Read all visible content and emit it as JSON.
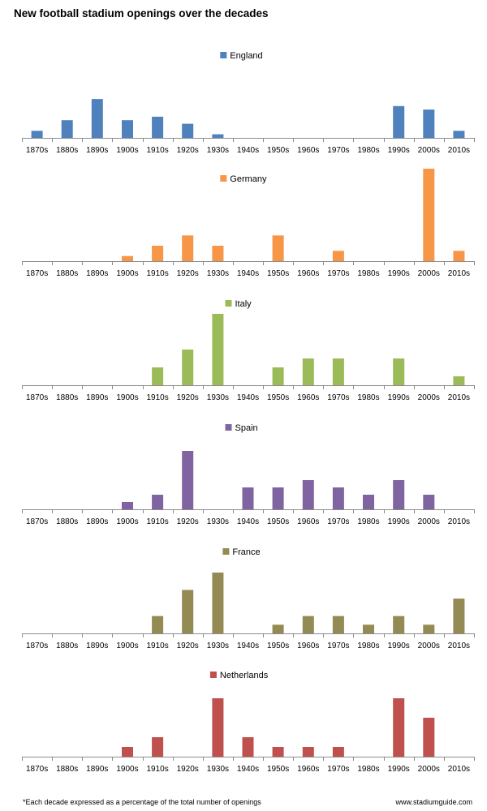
{
  "title": "New football stadium openings over the decades",
  "footnote": "*Each decade expressed as a percentage of the total number of openings",
  "source": "www.stadiumguide.com",
  "chart_data": [
    {
      "type": "bar",
      "series_name": "England",
      "color": "#4F81BD",
      "categories": [
        "1870s",
        "1880s",
        "1890s",
        "1900s",
        "1910s",
        "1920s",
        "1930s",
        "1940s",
        "1950s",
        "1960s",
        "1970s",
        "1980s",
        "1990s",
        "2000s",
        "2010s"
      ],
      "values": [
        2,
        5,
        11,
        5,
        6,
        4,
        1,
        0,
        0,
        0,
        0,
        0,
        9,
        8,
        2
      ],
      "ylim": [
        0,
        14
      ]
    },
    {
      "type": "bar",
      "series_name": "Germany",
      "color": "#F79646",
      "categories": [
        "1870s",
        "1880s",
        "1890s",
        "1900s",
        "1910s",
        "1920s",
        "1930s",
        "1940s",
        "1950s",
        "1960s",
        "1970s",
        "1980s",
        "1990s",
        "2000s",
        "2010s"
      ],
      "values": [
        0,
        0,
        0,
        1,
        3,
        5,
        3,
        0,
        5,
        0,
        2,
        0,
        0,
        18,
        2
      ],
      "ylim": [
        0,
        18
      ]
    },
    {
      "type": "bar",
      "series_name": "Italy",
      "color": "#9BBB59",
      "categories": [
        "1870s",
        "1880s",
        "1890s",
        "1900s",
        "1910s",
        "1920s",
        "1930s",
        "1940s",
        "1950s",
        "1960s",
        "1970s",
        "1980s",
        "1990s",
        "2000s",
        "2010s"
      ],
      "values": [
        0,
        0,
        0,
        0,
        2,
        4,
        8,
        0,
        2,
        3,
        3,
        0,
        3,
        0,
        1
      ],
      "ylim": [
        0,
        8
      ]
    },
    {
      "type": "bar",
      "series_name": "Spain",
      "color": "#8064A2",
      "categories": [
        "1870s",
        "1880s",
        "1890s",
        "1900s",
        "1910s",
        "1920s",
        "1930s",
        "1940s",
        "1950s",
        "1960s",
        "1970s",
        "1980s",
        "1990s",
        "2000s",
        "2010s"
      ],
      "values": [
        0,
        0,
        0,
        1,
        2,
        8,
        0,
        3,
        3,
        4,
        3,
        2,
        4,
        2,
        0
      ],
      "ylim": [
        0,
        8
      ]
    },
    {
      "type": "bar",
      "series_name": "France",
      "color": "#948A54",
      "categories": [
        "1870s",
        "1880s",
        "1890s",
        "1900s",
        "1910s",
        "1920s",
        "1930s",
        "1940s",
        "1950s",
        "1960s",
        "1970s",
        "1980s",
        "1990s",
        "2000s",
        "2010s"
      ],
      "values": [
        0,
        0,
        0,
        0,
        2,
        5,
        7,
        0,
        1,
        2,
        2,
        1,
        2,
        1,
        4
      ],
      "ylim": [
        0,
        7
      ]
    },
    {
      "type": "bar",
      "series_name": "Netherlands",
      "color": "#C0504D",
      "categories": [
        "1870s",
        "1880s",
        "1890s",
        "1900s",
        "1910s",
        "1920s",
        "1930s",
        "1940s",
        "1950s",
        "1960s",
        "1970s",
        "1980s",
        "1990s",
        "2000s",
        "2010s"
      ],
      "values": [
        0,
        0,
        0,
        1,
        2,
        0,
        6,
        2,
        1,
        1,
        1,
        0,
        6,
        4,
        0
      ],
      "ylim": [
        0,
        6
      ]
    }
  ]
}
